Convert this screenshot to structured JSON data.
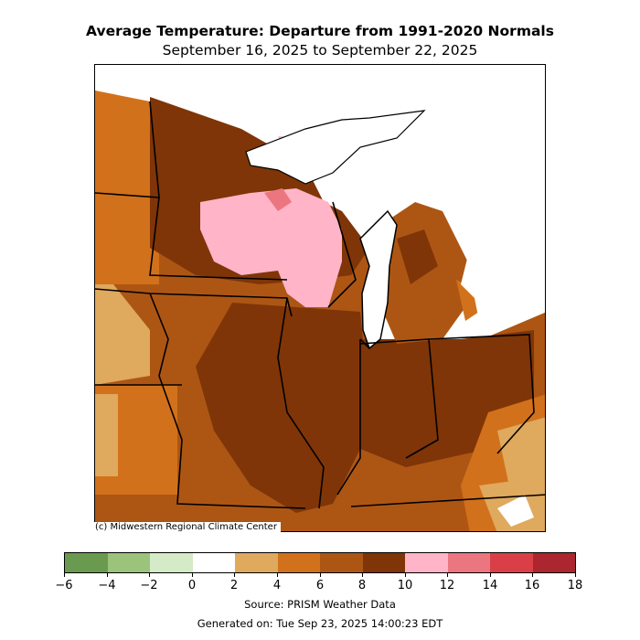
{
  "title": "Average Temperature: Departure from 1991-2020 Normals",
  "subtitle": "September 16, 2025 to September 22, 2025",
  "copyright": "(c) Midwestern Regional Climate Center",
  "source": "Source: PRISM Weather Data",
  "generated": "Generated on: Tue Sep 23, 2025 14:00:23 EDT",
  "legend": {
    "ticks": [
      "−6",
      "−4",
      "−2",
      "0",
      "2",
      "4",
      "6",
      "8",
      "10",
      "12",
      "14",
      "16",
      "18"
    ],
    "bins": [
      {
        "range": "-6 to -4",
        "color": "#6a9a4f"
      },
      {
        "range": "-4 to -2",
        "color": "#9cc37b"
      },
      {
        "range": "-2 to 0",
        "color": "#d5ebc8"
      },
      {
        "range": "0 to 2",
        "color": "#ffffff"
      },
      {
        "range": "2 to 4",
        "color": "#dfa95e"
      },
      {
        "range": "4 to 6",
        "color": "#d2711b"
      },
      {
        "range": "6 to 8",
        "color": "#ad5614"
      },
      {
        "range": "8 to 10",
        "color": "#7f3507"
      },
      {
        "range": "10 to 12",
        "color": "#ffb5c7"
      },
      {
        "range": "12 to 14",
        "color": "#ec7680"
      },
      {
        "range": "14 to 16",
        "color": "#da3f48"
      },
      {
        "range": "16 to 18",
        "color": "#ab262f"
      }
    ]
  }
}
